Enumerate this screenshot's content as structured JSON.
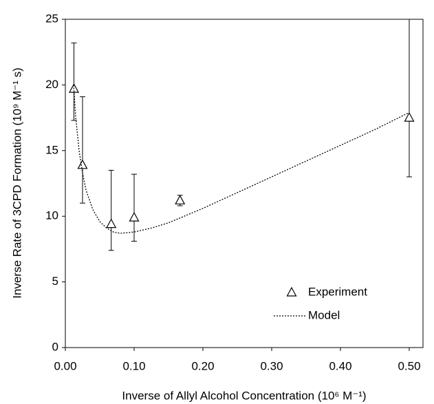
{
  "chart_data": {
    "type": "scatter",
    "xlabel": "Inverse of Allyl Alcohol Concentration  (10⁶ M⁻¹)",
    "ylabel": "Inverse Rate of 3CPD Formation (10⁹ M⁻¹ s)",
    "xlim": [
      0,
      0.52
    ],
    "ylim": [
      0,
      25
    ],
    "xticks": [
      {
        "value": 0,
        "label": "0.00"
      },
      {
        "value": 0.1,
        "label": "0.10"
      },
      {
        "value": 0.2,
        "label": "0.20"
      },
      {
        "value": 0.3,
        "label": "0.30"
      },
      {
        "value": 0.4,
        "label": "0.40"
      },
      {
        "value": 0.5,
        "label": "0.50"
      }
    ],
    "yticks": [
      0,
      5,
      10,
      15,
      20,
      25
    ],
    "legend": "lower right",
    "series": [
      {
        "name": "Experiment",
        "color": "#000000",
        "marker": "triangle",
        "x": [
          0.0125,
          0.025,
          0.0667,
          0.1,
          0.1667,
          0.5
        ],
        "values": [
          19.7,
          13.9,
          9.4,
          9.9,
          11.2,
          17.5
        ],
        "err_low": [
          2.4,
          2.9,
          2.0,
          1.8,
          0.4,
          4.5
        ],
        "err_high": [
          3.5,
          5.2,
          4.1,
          3.3,
          0.4,
          8.0
        ]
      },
      {
        "name": "Model",
        "color": "#000000",
        "marker": "dotted-line",
        "x": [
          0.012,
          0.015,
          0.02,
          0.025,
          0.03,
          0.04,
          0.05,
          0.06,
          0.07,
          0.08,
          0.1,
          0.125,
          0.15,
          0.2,
          0.25,
          0.3,
          0.35,
          0.4,
          0.45,
          0.5
        ],
        "values": [
          20.0,
          17.6,
          15.0,
          13.3,
          12.0,
          10.5,
          9.6,
          9.1,
          8.8,
          8.7,
          8.8,
          9.1,
          9.5,
          10.6,
          11.8,
          13.0,
          14.2,
          15.4,
          16.6,
          17.9
        ]
      }
    ]
  }
}
